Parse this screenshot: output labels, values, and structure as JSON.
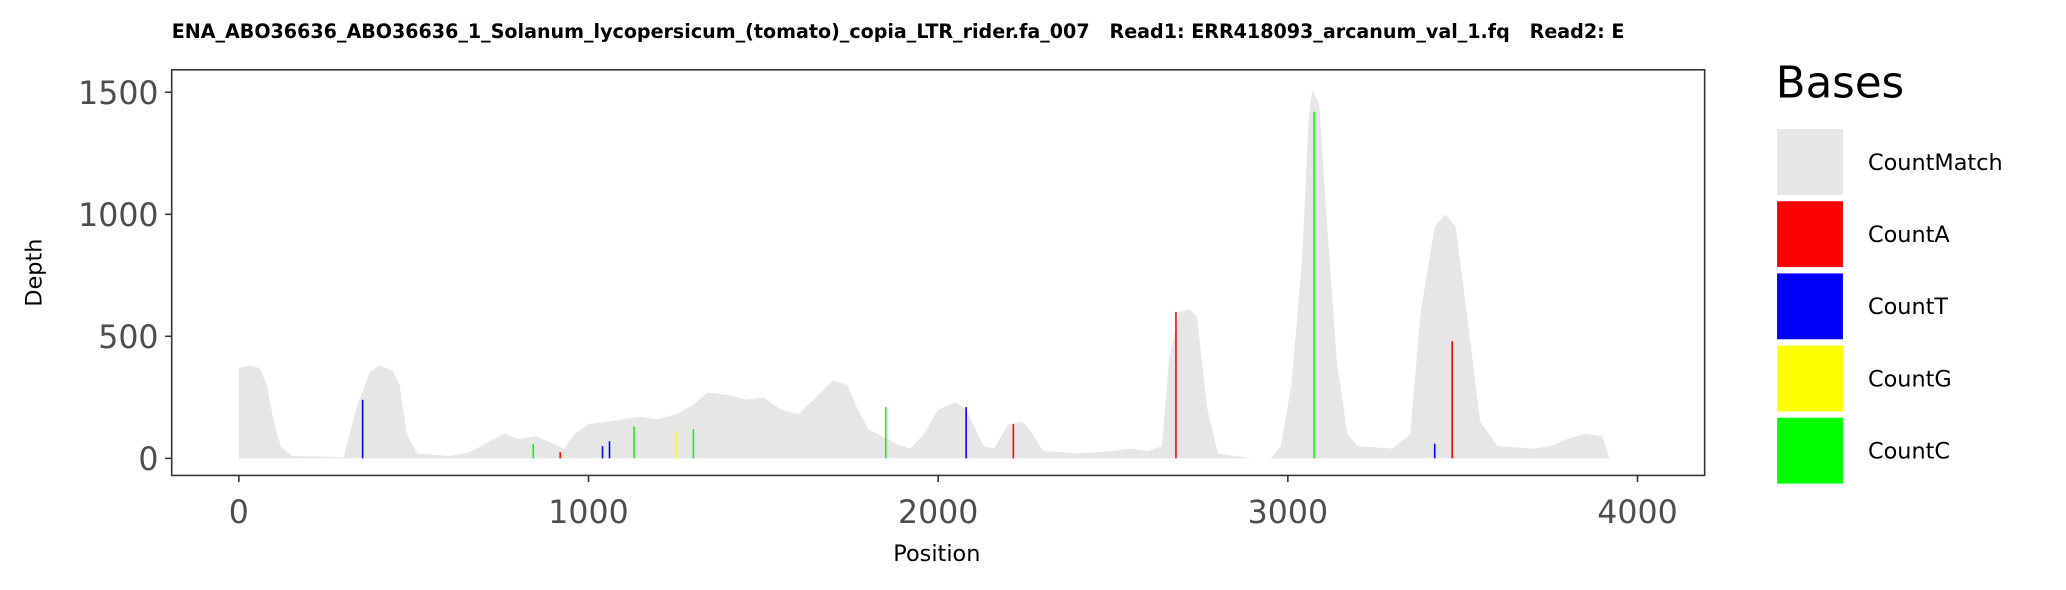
{
  "chart_data": {
    "type": "area",
    "title": "ENA_ABO36636_ABO36636_1_Solanum_lycopersicum_(tomato)_copia_LTR_rider.fa_007   Read1: ERR418093_arcanum_val_1.fq   Read2: E",
    "x_label": "Position",
    "y_label": "Depth",
    "legend_title": "Bases",
    "legend": "right",
    "xlim": [
      -192,
      4192
    ],
    "ylim": [
      -70,
      1592
    ],
    "xticks": [
      0,
      1000,
      2000,
      3000,
      4000
    ],
    "yticks": [
      0,
      500,
      1000,
      1500
    ],
    "series": [
      {
        "name": "CountMatch",
        "color": "#e6e6e6",
        "style": "area",
        "x": [
          0,
          30,
          60,
          80,
          100,
          120,
          150,
          300,
          335,
          373,
          400,
          440,
          460,
          480,
          510,
          600,
          650,
          680,
          730,
          760,
          800,
          850,
          900,
          930,
          960,
          1000,
          1100,
          1150,
          1200,
          1250,
          1300,
          1340,
          1400,
          1450,
          1500,
          1550,
          1600,
          1650,
          1700,
          1740,
          1770,
          1800,
          1880,
          1920,
          1960,
          2000,
          2050,
          2080,
          2130,
          2160,
          2200,
          2240,
          2260,
          2300,
          2400,
          2500,
          2550,
          2600,
          2640,
          2660,
          2690,
          2720,
          2740,
          2770,
          2800,
          2850,
          2900,
          2950,
          2980,
          3010,
          3040,
          3060,
          3070,
          3090,
          3110,
          3140,
          3170,
          3200,
          3300,
          3350,
          3380,
          3420,
          3450,
          3480,
          3520,
          3550,
          3600,
          3700,
          3750,
          3800,
          3850,
          3900,
          3920
        ],
        "values": [
          370,
          380,
          370,
          300,
          150,
          50,
          10,
          5,
          200,
          350,
          380,
          360,
          300,
          100,
          20,
          10,
          20,
          40,
          80,
          100,
          80,
          90,
          60,
          40,
          100,
          140,
          160,
          170,
          160,
          180,
          220,
          270,
          260,
          240,
          250,
          200,
          180,
          250,
          320,
          300,
          200,
          120,
          60,
          40,
          100,
          200,
          230,
          200,
          50,
          40,
          140,
          150,
          120,
          30,
          20,
          30,
          40,
          30,
          50,
          400,
          600,
          610,
          580,
          200,
          20,
          10,
          0,
          0,
          50,
          300,
          800,
          1400,
          1510,
          1450,
          1000,
          400,
          100,
          50,
          40,
          100,
          600,
          950,
          1000,
          950,
          500,
          150,
          50,
          40,
          50,
          80,
          100,
          90,
          0
        ]
      },
      {
        "name": "CountA",
        "color": "#ff0000",
        "style": "spike",
        "x": [
          919,
          2215,
          2680,
          3470
        ],
        "values": [
          25,
          140,
          600,
          480
        ]
      },
      {
        "name": "CountT",
        "color": "#0000ff",
        "style": "spike",
        "x": [
          354,
          1040,
          1060,
          2080,
          3420
        ],
        "values": [
          240,
          50,
          70,
          210,
          60
        ]
      },
      {
        "name": "CountG",
        "color": "#ffff00",
        "style": "spike",
        "x": [
          1250
        ],
        "values": [
          110
        ]
      },
      {
        "name": "CountC",
        "color": "#00ff00",
        "style": "spike",
        "x": [
          842,
          1130,
          1300,
          1850,
          3075
        ],
        "values": [
          60,
          130,
          120,
          210,
          1420
        ]
      }
    ]
  }
}
